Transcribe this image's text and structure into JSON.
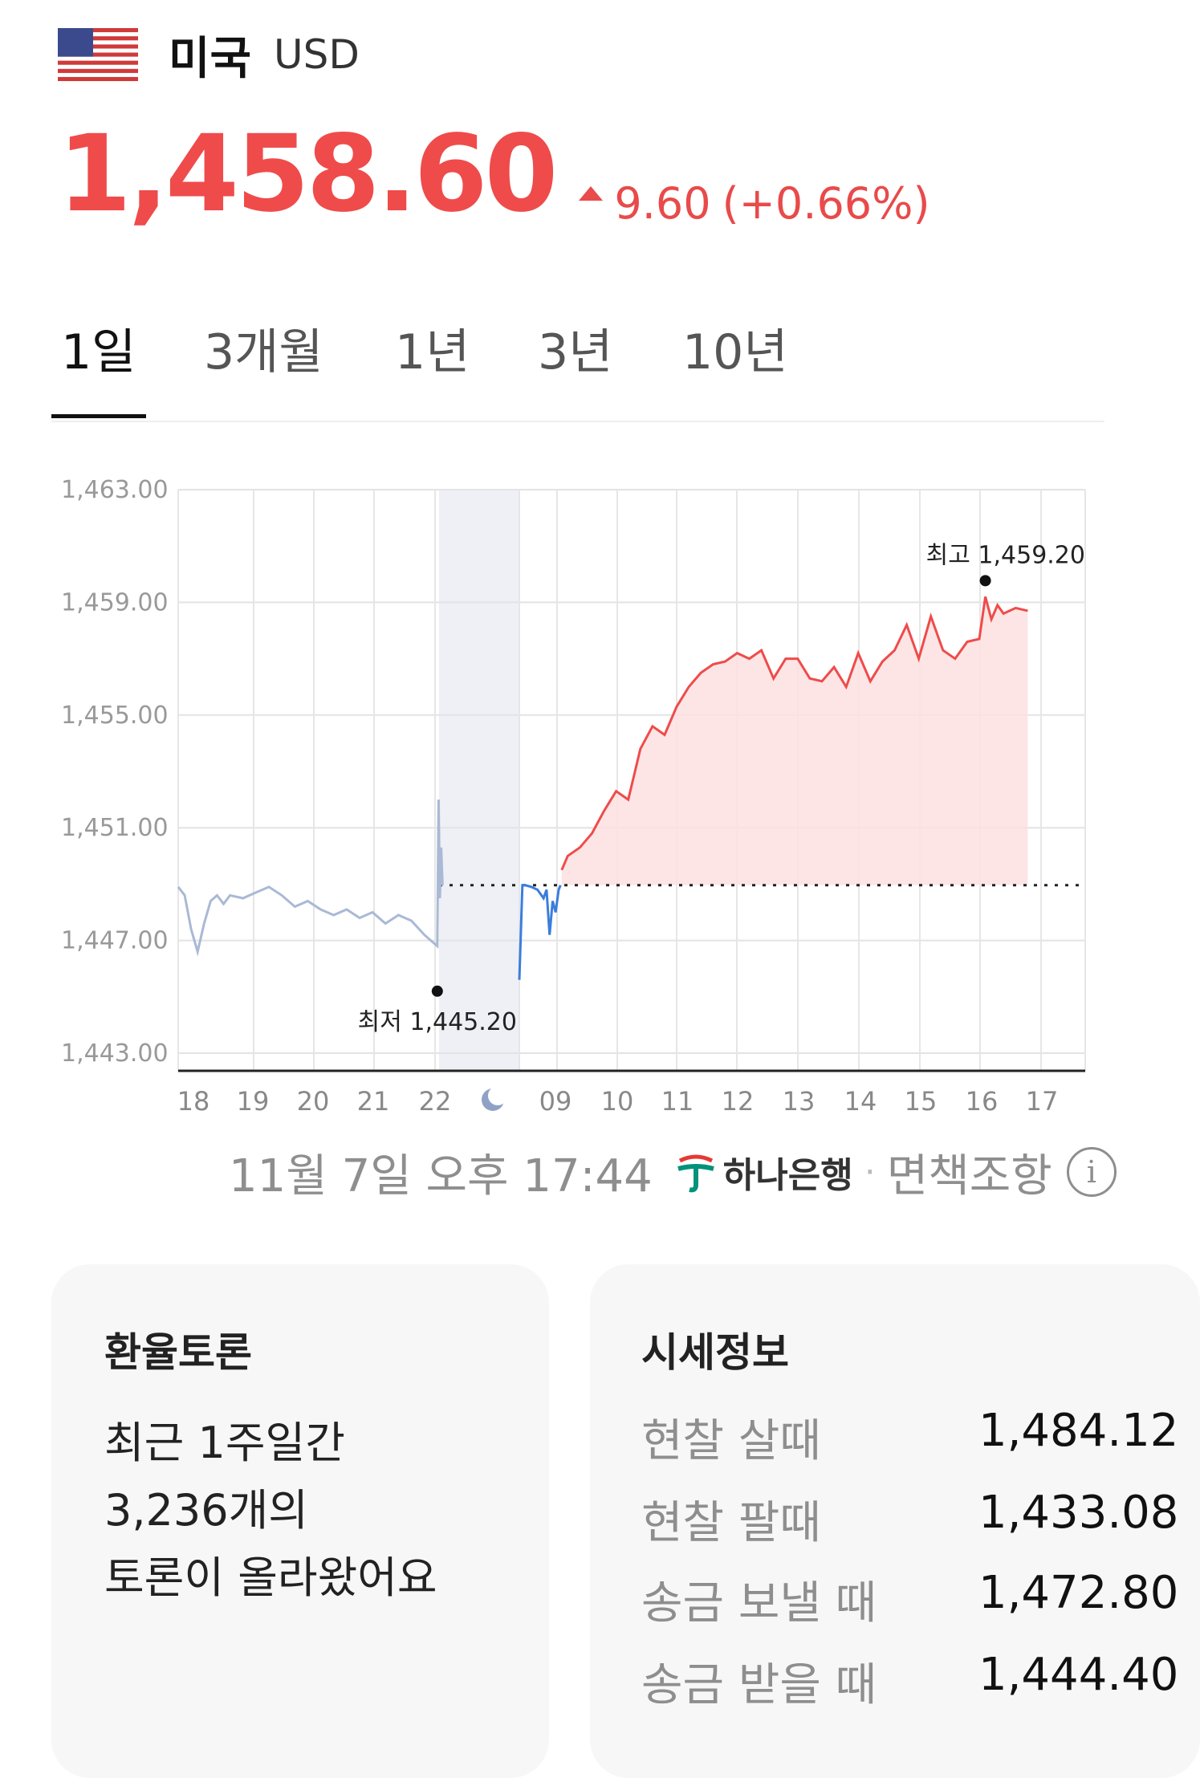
{
  "header": {
    "country": "미국",
    "currency": "USD",
    "flag_icon": "us-flag-icon"
  },
  "price": {
    "value": "1,458.60",
    "change": "9.60",
    "change_pct": "(+0.66%)",
    "direction": "up",
    "color": "#ef4b4b"
  },
  "tabs": [
    {
      "label": "1일",
      "active": true
    },
    {
      "label": "3개월",
      "active": false
    },
    {
      "label": "1년",
      "active": false
    },
    {
      "label": "3년",
      "active": false
    },
    {
      "label": "10년",
      "active": false
    }
  ],
  "chart_data": {
    "type": "line",
    "y_ticks": [
      "1,463.00",
      "1,459.00",
      "1,455.00",
      "1,451.00",
      "1,447.00",
      "1,443.00"
    ],
    "ylim": [
      1443,
      1463
    ],
    "x_ticks": [
      "18",
      "19",
      "20",
      "21",
      "22",
      "09",
      "10",
      "11",
      "12",
      "13",
      "14",
      "15",
      "16",
      "17"
    ],
    "night_icon": "moon-icon",
    "baseline": 1448.96,
    "max_label": "최고 1,459.20",
    "max_value": 1459.2,
    "min_label": "최저 1,445.20",
    "min_value": 1445.2,
    "colors": {
      "previous_session": "#aab9d4",
      "below_baseline": "#3b7ddd",
      "up": "#ef4b4b",
      "up_fill": "#fde0e0",
      "night_band": "#eef0f6"
    },
    "series": [
      {
        "segment": "previous_session",
        "x": [
          18.0,
          18.1,
          18.2,
          18.3,
          18.4,
          18.5,
          18.6,
          18.7,
          18.8,
          19.0,
          19.2,
          19.4,
          19.6,
          19.8,
          20.0,
          20.2,
          20.4,
          20.6,
          20.8,
          21.0,
          21.2,
          21.4,
          21.6,
          21.8,
          21.9,
          22.0,
          22.02,
          22.04,
          22.06,
          22.08
        ],
        "y": [
          1448.9,
          1448.6,
          1447.4,
          1446.6,
          1447.6,
          1448.4,
          1448.6,
          1448.3,
          1448.6,
          1448.5,
          1448.7,
          1448.9,
          1448.6,
          1448.2,
          1448.4,
          1448.1,
          1447.9,
          1448.1,
          1447.8,
          1448.0,
          1447.6,
          1447.9,
          1447.7,
          1447.2,
          1447.0,
          1446.8,
          1452.0,
          1448.5,
          1450.3,
          1448.96
        ]
      },
      {
        "segment": "below_baseline",
        "x": [
          1.0,
          1.05,
          1.1,
          1.2,
          1.3,
          1.4,
          1.45,
          1.5,
          1.55,
          1.6,
          1.65,
          1.68
        ],
        "y": [
          1445.6,
          1448.96,
          1448.96,
          1448.9,
          1448.8,
          1448.5,
          1448.8,
          1447.2,
          1448.4,
          1448.0,
          1448.8,
          1448.96
        ]
      },
      {
        "segment": "up",
        "x": [
          1.7,
          1.8,
          2.0,
          2.2,
          2.4,
          2.6,
          2.8,
          3.0,
          3.2,
          3.4,
          3.6,
          3.8,
          4.0,
          4.2,
          4.4,
          4.6,
          4.8,
          5.0,
          5.2,
          5.4,
          5.6,
          5.8,
          6.0,
          6.2,
          6.4,
          6.6,
          6.8,
          7.0,
          7.2,
          7.4,
          7.6,
          7.8,
          8.0,
          8.2,
          8.4,
          8.6,
          8.7,
          8.8,
          8.9,
          9.0,
          9.2,
          9.4
        ],
        "y": [
          1449.5,
          1450.0,
          1450.3,
          1450.8,
          1451.6,
          1452.3,
          1452.0,
          1453.8,
          1454.6,
          1454.3,
          1455.3,
          1456.0,
          1456.5,
          1456.8,
          1456.9,
          1457.2,
          1457.0,
          1457.3,
          1456.3,
          1457.0,
          1457.0,
          1456.3,
          1456.2,
          1456.7,
          1456.0,
          1457.2,
          1456.2,
          1456.9,
          1457.3,
          1458.2,
          1457.0,
          1458.5,
          1457.3,
          1457.0,
          1457.6,
          1457.7,
          1459.2,
          1458.4,
          1458.9,
          1458.6,
          1458.8,
          1458.7
        ]
      }
    ]
  },
  "footer": {
    "timestamp": "11월 7일 오후 17:44",
    "bank": "하나은행",
    "separator": "·",
    "disclaimer": "면책조항"
  },
  "debate_card": {
    "title": "환율토론",
    "line1": "최근 1주일간",
    "line2": "3,236개의",
    "line3": "토론이 올라왔어요"
  },
  "market_card": {
    "title": "시세정보",
    "rows": [
      {
        "label": "현찰 살때",
        "value": "1,484.12"
      },
      {
        "label": "현찰 팔때",
        "value": "1,433.08"
      },
      {
        "label": "송금 보낼 때",
        "value": "1,472.80"
      },
      {
        "label": "송금 받을 때",
        "value": "1,444.40"
      }
    ]
  }
}
